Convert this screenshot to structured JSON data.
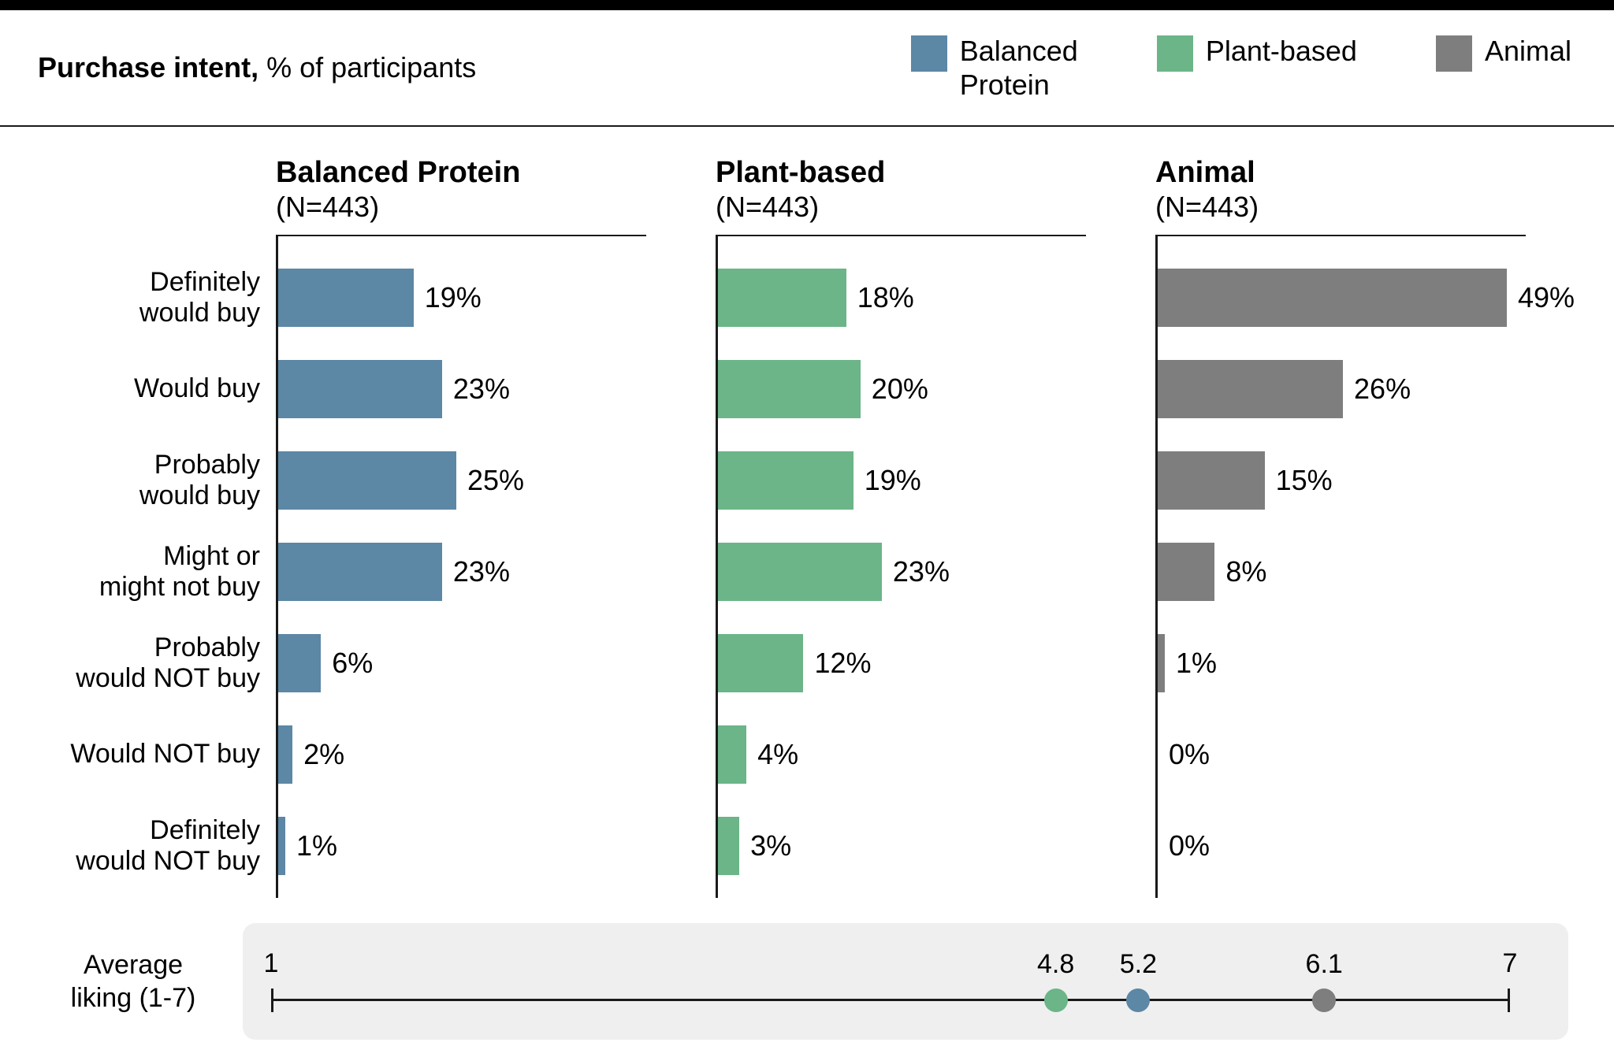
{
  "header": {
    "title_bold": "Purchase intent,",
    "title_regular": " % of participants"
  },
  "legend": [
    {
      "lines": [
        "Balanced",
        "Protein"
      ],
      "color": "#5C87A5"
    },
    {
      "lines": [
        "Plant-based"
      ],
      "color": "#6BB588"
    },
    {
      "lines": [
        "Animal"
      ],
      "color": "#7E7E7E"
    }
  ],
  "colors": {
    "balanced_protein": "#5C87A5",
    "plant_based": "#6BB588",
    "animal": "#7E7E7E",
    "liking_panel_bg": "#EFEFEF",
    "top_bar": "#000000"
  },
  "chart_data": [
    {
      "type": "bar",
      "orientation": "horizontal",
      "title": "Purchase intent, % of participants",
      "categories": [
        "Definitely would buy",
        "Would buy",
        "Probably would buy",
        "Might or might not buy",
        "Probably would NOT buy",
        "Would NOT buy",
        "Definitely would NOT buy"
      ],
      "category_label_lines": [
        [
          "Definitely",
          "would buy"
        ],
        [
          "Would buy"
        ],
        [
          "Probably",
          "would buy"
        ],
        [
          "Might or",
          "might not buy"
        ],
        [
          "Probably",
          "would NOT buy"
        ],
        [
          "Would NOT buy"
        ],
        [
          "Definitely",
          "would NOT buy"
        ]
      ],
      "series": [
        {
          "name": "Balanced Protein",
          "n_label": "(N=443)",
          "color": "#5C87A5",
          "values": [
            19,
            23,
            25,
            23,
            6,
            2,
            1
          ]
        },
        {
          "name": "Plant-based",
          "n_label": "(N=443)",
          "color": "#6BB588",
          "values": [
            18,
            20,
            19,
            23,
            12,
            4,
            3
          ]
        },
        {
          "name": "Animal",
          "n_label": "(N=443)",
          "color": "#7E7E7E",
          "values": [
            49,
            26,
            15,
            8,
            1,
            0,
            0
          ]
        }
      ],
      "value_suffix": "%",
      "xlim": [
        0,
        50
      ],
      "grid": false,
      "legend_position": "top-right"
    },
    {
      "type": "scatter",
      "title": "Average liking (1-7)",
      "xlabel_lines": [
        "Average",
        "liking (1-7)"
      ],
      "xlim": [
        1,
        7
      ],
      "axis_ticks": [
        "1",
        "7"
      ],
      "points": [
        {
          "name": "Plant-based",
          "x": 4.8,
          "color": "#6BB588"
        },
        {
          "name": "Balanced Protein",
          "x": 5.2,
          "color": "#5C87A5"
        },
        {
          "name": "Animal",
          "x": 6.1,
          "color": "#7E7E7E"
        }
      ]
    }
  ]
}
